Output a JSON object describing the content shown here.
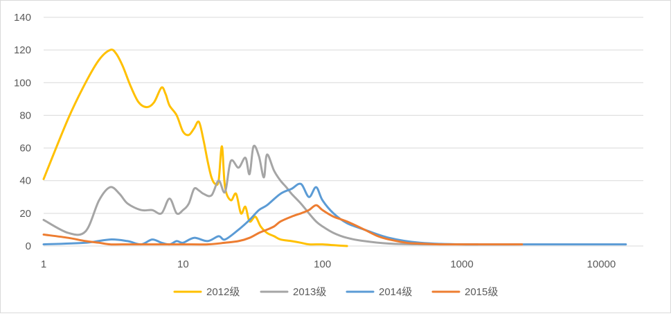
{
  "chart_data": {
    "type": "line",
    "x_scale": "log",
    "xlim": [
      1,
      20000
    ],
    "ylim": [
      0,
      140
    ],
    "x_ticks": [
      "1",
      "10",
      "100",
      "1000",
      "10000"
    ],
    "y_ticks": [
      "0",
      "20",
      "40",
      "60",
      "80",
      "100",
      "120",
      "140"
    ],
    "grid": "horizontal",
    "legend": "bottom",
    "series": [
      {
        "name": "2012级",
        "color": "#ffc000",
        "x": [
          1,
          1.5,
          2,
          2.5,
          3,
          3.3,
          3.7,
          4.2,
          4.8,
          5.5,
          6.2,
          7,
          7.5,
          8,
          9,
          10,
          11,
          12,
          13,
          14,
          15,
          16,
          17,
          18,
          19,
          20,
          22,
          24,
          26,
          28,
          30,
          33,
          36,
          40,
          45,
          50,
          60,
          70,
          80,
          100,
          120,
          150
        ],
        "y": [
          41,
          78,
          100,
          114,
          120,
          118,
          110,
          98,
          88,
          85,
          88,
          97,
          93,
          86,
          80,
          70,
          68,
          72,
          76,
          65,
          52,
          42,
          38,
          40,
          61,
          36,
          28,
          32,
          20,
          24,
          15,
          18,
          12,
          8,
          6,
          4,
          3,
          2,
          1,
          1,
          0.5,
          0
        ]
      },
      {
        "name": "2013级",
        "color": "#a5a5a5",
        "x": [
          1,
          1.5,
          2,
          2.5,
          3,
          3.5,
          4,
          5,
          6,
          7,
          8,
          9,
          10,
          11,
          12,
          13,
          14,
          16,
          18,
          20,
          22,
          25,
          28,
          30,
          32,
          35,
          38,
          40,
          45,
          50,
          55,
          60,
          70,
          80,
          90,
          100,
          120,
          150,
          200,
          300,
          500,
          1000,
          1300
        ],
        "y": [
          16,
          8,
          9,
          28,
          36,
          32,
          26,
          22,
          22,
          20,
          29,
          20,
          22,
          26,
          35,
          34,
          32,
          31,
          40,
          33,
          52,
          48,
          54,
          44,
          61,
          55,
          42,
          56,
          46,
          40,
          36,
          32,
          26,
          20,
          15,
          12,
          8,
          5,
          3,
          1.5,
          1,
          1,
          1
        ]
      },
      {
        "name": "2014级",
        "color": "#5b9bd5",
        "x": [
          1,
          2,
          3,
          4,
          5,
          6,
          7,
          8,
          9,
          10,
          12,
          15,
          18,
          20,
          25,
          30,
          35,
          40,
          50,
          60,
          70,
          80,
          90,
          100,
          120,
          150,
          200,
          300,
          500,
          1000,
          3000,
          10000,
          15000
        ],
        "y": [
          1,
          2,
          4,
          3,
          1,
          4,
          2,
          1,
          3,
          2,
          5,
          3,
          6,
          4,
          10,
          16,
          22,
          25,
          32,
          35,
          38,
          30,
          36,
          28,
          20,
          14,
          10,
          5,
          2,
          1,
          1,
          1,
          1
        ]
      },
      {
        "name": "2015级",
        "color": "#ed7d31",
        "x": [
          1,
          1.5,
          2,
          2.5,
          3,
          4,
          5,
          7,
          10,
          15,
          20,
          25,
          30,
          35,
          40,
          45,
          50,
          60,
          70,
          80,
          90,
          100,
          120,
          150,
          200,
          250,
          300,
          400,
          500,
          700,
          1000,
          2000,
          2700
        ],
        "y": [
          7,
          5,
          3,
          2,
          1,
          1,
          1,
          1,
          1,
          1,
          2,
          3,
          5,
          8,
          10,
          12,
          15,
          18,
          20,
          22,
          25,
          22,
          18,
          15,
          10,
          6,
          4,
          2,
          1.5,
          1,
          1,
          1,
          1
        ]
      }
    ]
  }
}
